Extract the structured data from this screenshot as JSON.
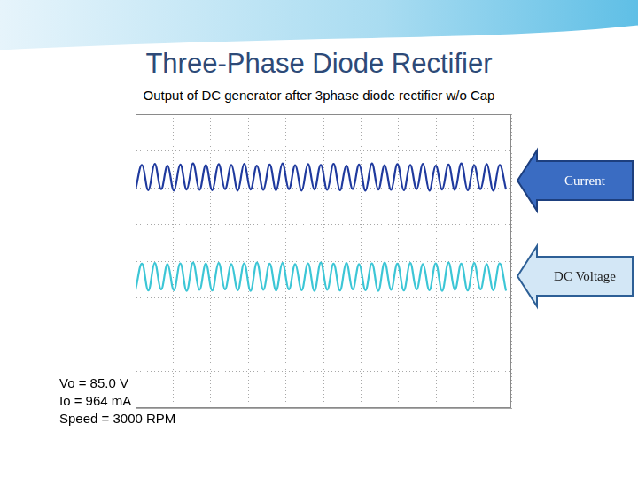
{
  "chart_data": {
    "type": "line",
    "title": "Three-Phase Diode Rectifier",
    "subtitle": "Output of DC generator after 3phase diode rectifier w/o Cap",
    "x": [
      0,
      0.17,
      0.34,
      0.51,
      0.68,
      0.85,
      1.02,
      1.19,
      1.36,
      1.53,
      1.7,
      1.87,
      2.04,
      2.21,
      2.38,
      2.55,
      2.72,
      2.89,
      3.06,
      3.23,
      3.4,
      3.57,
      3.74,
      3.91,
      4.08,
      4.25,
      4.42,
      4.59,
      4.76,
      4.93,
      5.1,
      5.27,
      5.44,
      5.61,
      5.78,
      5.95,
      6.12,
      6.29,
      6.46,
      6.63,
      6.8,
      6.97,
      7.14,
      7.31,
      7.48,
      7.65,
      7.82,
      7.99,
      8.16,
      8.33,
      8.5,
      8.67,
      8.84,
      9.01,
      9.18,
      9.35,
      9.52,
      9.69,
      9.86
    ],
    "series": [
      {
        "name": "Current",
        "color": "#1f3a9e",
        "values": [
          5.95,
          6.62,
          5.93,
          6.65,
          5.96,
          6.6,
          5.92,
          6.63,
          5.95,
          6.66,
          5.94,
          6.61,
          5.93,
          6.64,
          5.96,
          6.62,
          5.92,
          6.65,
          5.95,
          6.6,
          5.94,
          6.63,
          5.93,
          6.66,
          5.96,
          6.61,
          5.92,
          6.64,
          5.95,
          6.62,
          5.94,
          6.65,
          5.93,
          6.6,
          5.96,
          6.63,
          5.92,
          6.66,
          5.95,
          6.61,
          5.94,
          6.64,
          5.93,
          6.62,
          5.96,
          6.65,
          5.92,
          6.6,
          5.95,
          6.63,
          5.94,
          6.66,
          5.93,
          6.61,
          5.96,
          6.64,
          5.92,
          6.62,
          5.95
        ]
      },
      {
        "name": "DC Voltage",
        "color": "#3cc6d6",
        "values": [
          3.22,
          3.93,
          3.2,
          3.95,
          3.23,
          3.92,
          3.21,
          3.94,
          3.19,
          3.96,
          3.22,
          3.93,
          3.2,
          3.95,
          3.23,
          3.92,
          3.21,
          3.94,
          3.19,
          3.96,
          3.22,
          3.93,
          3.2,
          3.95,
          3.23,
          3.92,
          3.21,
          3.94,
          3.19,
          3.96,
          3.22,
          3.93,
          3.2,
          3.95,
          3.23,
          3.92,
          3.21,
          3.94,
          3.19,
          3.96,
          3.22,
          3.93,
          3.2,
          3.95,
          3.23,
          3.92,
          3.21,
          3.94,
          3.19,
          3.96,
          3.22,
          3.93,
          3.2,
          3.95,
          3.23,
          3.92,
          3.21,
          3.94,
          3.19
        ]
      }
    ],
    "xlim": [
      0,
      10
    ],
    "xticks": [
      0,
      1,
      2,
      3,
      4,
      5,
      6,
      7,
      8,
      9,
      10
    ],
    "ylim": [
      0,
      8
    ],
    "yticks": [
      0,
      1,
      2,
      3,
      4,
      5,
      6,
      7,
      8
    ],
    "grid": true,
    "tick_labels": false,
    "annotations": [
      "Vo = 85.0 V",
      "Io = 964 mA",
      "Speed = 3000 RPM"
    ]
  }
}
